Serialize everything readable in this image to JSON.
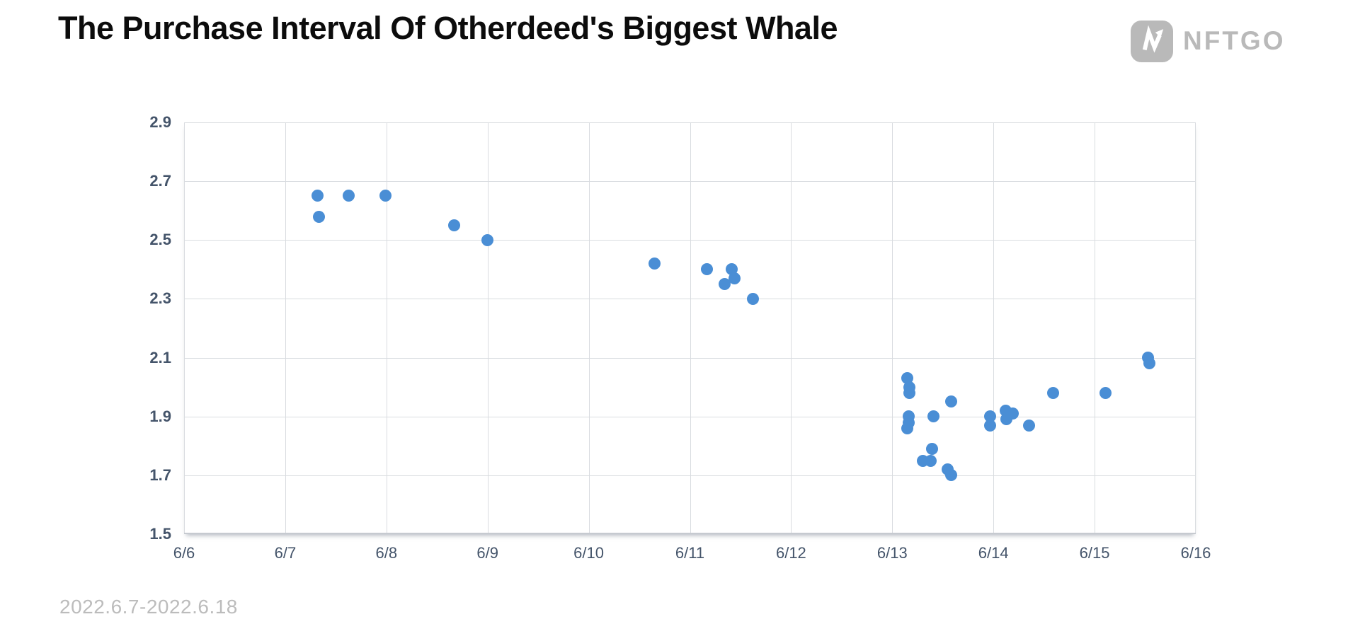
{
  "header": {
    "title": "The Purchase Interval Of Otherdeed's Biggest Whale",
    "logo": {
      "brand": "NFTGO",
      "icon": "nftgo-n-arrow-icon"
    }
  },
  "footer": {
    "date_range": "2022.6.7-2022.6.18"
  },
  "colors": {
    "dot": "#4a8ed5",
    "grid": "#d9dce0",
    "axis_label": "#44546a",
    "title": "#0c0c0c",
    "logo_gray": "#b9b9b9",
    "footer_gray": "#bcbcbc"
  },
  "chart_data": {
    "type": "scatter",
    "title": "The Purchase Interval Of Otherdeed's Biggest Whale",
    "xlabel": "",
    "ylabel": "",
    "grid": true,
    "legend": false,
    "x_unit": "date (June 2022, day as decimal)",
    "xlim_days": [
      6,
      16
    ],
    "ylim": [
      1.5,
      2.9
    ],
    "x_ticks": [
      {
        "label": "6/6",
        "day": 6
      },
      {
        "label": "6/7",
        "day": 7
      },
      {
        "label": "6/8",
        "day": 8
      },
      {
        "label": "6/9",
        "day": 9
      },
      {
        "label": "6/10",
        "day": 10
      },
      {
        "label": "6/11",
        "day": 11
      },
      {
        "label": "6/12",
        "day": 12
      },
      {
        "label": "6/13",
        "day": 13
      },
      {
        "label": "6/14",
        "day": 14
      },
      {
        "label": "6/15",
        "day": 15
      },
      {
        "label": "6/16",
        "day": 16
      }
    ],
    "y_ticks": [
      {
        "label": "2.9",
        "value": 2.9
      },
      {
        "label": "2.7",
        "value": 2.7
      },
      {
        "label": "2.5",
        "value": 2.5
      },
      {
        "label": "2.3",
        "value": 2.3
      },
      {
        "label": "2.1",
        "value": 2.1
      },
      {
        "label": "1.9",
        "value": 1.9
      },
      {
        "label": "1.7",
        "value": 1.7
      },
      {
        "label": "1.5",
        "value": 1.5
      }
    ],
    "points": [
      {
        "x": 7.32,
        "y": 2.65
      },
      {
        "x": 7.33,
        "y": 2.58
      },
      {
        "x": 7.63,
        "y": 2.65
      },
      {
        "x": 7.99,
        "y": 2.65
      },
      {
        "x": 8.67,
        "y": 2.55
      },
      {
        "x": 9.0,
        "y": 2.5
      },
      {
        "x": 10.65,
        "y": 2.42
      },
      {
        "x": 11.17,
        "y": 2.4
      },
      {
        "x": 11.34,
        "y": 2.35
      },
      {
        "x": 11.41,
        "y": 2.4
      },
      {
        "x": 11.44,
        "y": 2.37
      },
      {
        "x": 11.62,
        "y": 2.3
      },
      {
        "x": 13.15,
        "y": 2.03
      },
      {
        "x": 13.17,
        "y": 2.0
      },
      {
        "x": 13.17,
        "y": 1.98
      },
      {
        "x": 13.16,
        "y": 1.9
      },
      {
        "x": 13.16,
        "y": 1.88
      },
      {
        "x": 13.15,
        "y": 1.86
      },
      {
        "x": 13.41,
        "y": 1.9
      },
      {
        "x": 13.58,
        "y": 1.95
      },
      {
        "x": 13.39,
        "y": 1.79
      },
      {
        "x": 13.3,
        "y": 1.75
      },
      {
        "x": 13.38,
        "y": 1.75
      },
      {
        "x": 13.55,
        "y": 1.72
      },
      {
        "x": 13.58,
        "y": 1.7
      },
      {
        "x": 13.97,
        "y": 1.9
      },
      {
        "x": 13.97,
        "y": 1.87
      },
      {
        "x": 14.12,
        "y": 1.92
      },
      {
        "x": 14.13,
        "y": 1.89
      },
      {
        "x": 14.19,
        "y": 1.91
      },
      {
        "x": 14.35,
        "y": 1.87
      },
      {
        "x": 14.59,
        "y": 1.98
      },
      {
        "x": 15.11,
        "y": 1.98
      },
      {
        "x": 15.53,
        "y": 2.1
      },
      {
        "x": 15.54,
        "y": 2.08
      }
    ]
  }
}
